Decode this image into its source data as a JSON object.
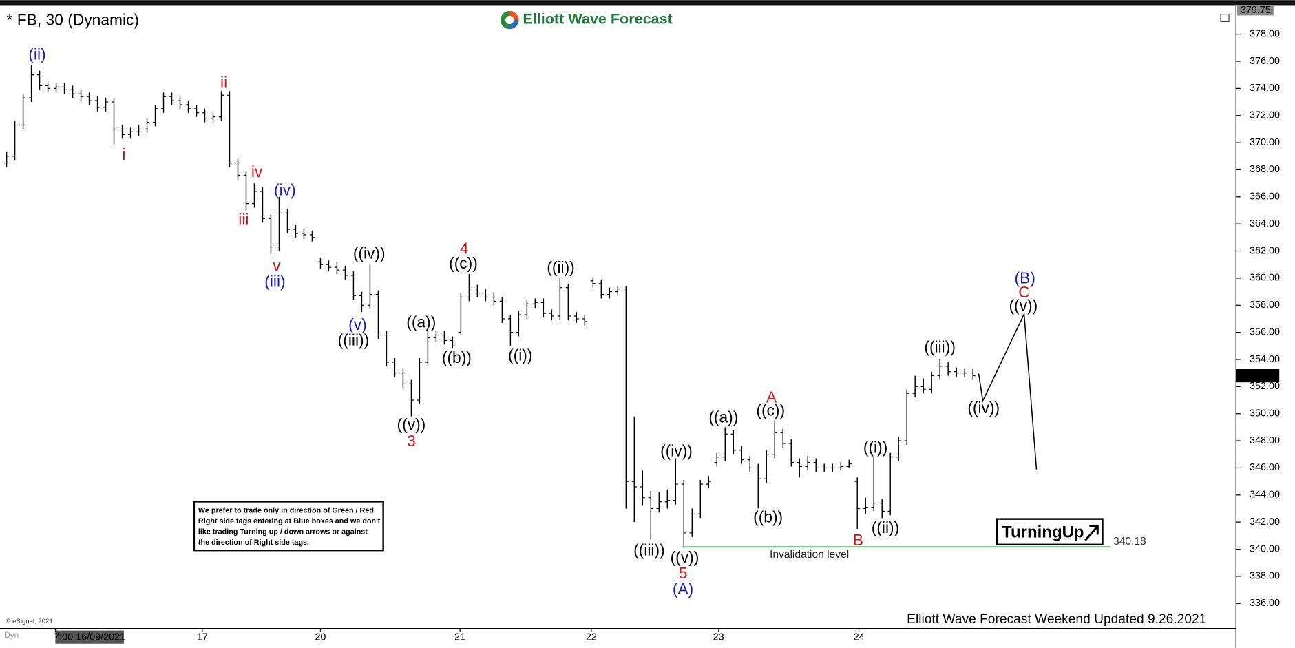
{
  "chart_data": {
    "type": "ohlc",
    "title": "* FB, 30 (Dynamic)",
    "brand": "Elliott Wave Forecast",
    "footer": "Elliott Wave Forecast Weekend Updated 9.26.2021",
    "copyright": "© eSignal, 2021",
    "mode": "Dyn",
    "badge": "TurningUp",
    "note": [
      "We prefer to trade only in direction of Green / Red",
      "Right side tags entering at Blue boxes and we don't",
      "like trading Turning up / down arrows or against",
      "the direction of Right side tags."
    ],
    "color": "#000000",
    "ylim": [
      335.1,
      379.9
    ],
    "yticks": [
      {
        "value": 336,
        "label": "336.00"
      },
      {
        "value": 338,
        "label": "338.00"
      },
      {
        "value": 340,
        "label": "340.00"
      },
      {
        "value": 342,
        "label": "342.00"
      },
      {
        "value": 344,
        "label": "344.00"
      },
      {
        "value": 346,
        "label": "346.00"
      },
      {
        "value": 348,
        "label": "348.00"
      },
      {
        "value": 350,
        "label": "350.00"
      },
      {
        "value": 352,
        "label": "352.00"
      },
      {
        "value": 354,
        "label": "354.00"
      },
      {
        "value": 356,
        "label": "356.00"
      },
      {
        "value": 358,
        "label": "358.00"
      },
      {
        "value": 360,
        "label": "360.00"
      },
      {
        "value": 362,
        "label": "362.00"
      },
      {
        "value": 364,
        "label": "364.00"
      },
      {
        "value": 366,
        "label": "366.00"
      },
      {
        "value": 368,
        "label": "368.00"
      },
      {
        "value": 370,
        "label": "370.00"
      },
      {
        "value": 372,
        "label": "372.00"
      },
      {
        "value": 374,
        "label": "374.00"
      },
      {
        "value": 376,
        "label": "376.00"
      },
      {
        "value": 378,
        "label": "378.00"
      }
    ],
    "xlim": [
      -0.8,
      148.7
    ],
    "xticks": [
      {
        "value": 5.9,
        "label": "7:00 16/09/2021"
      },
      {
        "value": 23.7,
        "label": "17"
      },
      {
        "value": 38.0,
        "label": "20"
      },
      {
        "value": 54.9,
        "label": "21"
      },
      {
        "value": 70.8,
        "label": "22"
      },
      {
        "value": 86.2,
        "label": "23"
      },
      {
        "value": 103.2,
        "label": "24"
      }
    ],
    "high_marker": {
      "value": 379.75,
      "label": "379.75"
    },
    "last_price": {
      "value": 352.8,
      "label": "352.80"
    },
    "invalidation": {
      "value": 340.18,
      "label": "340.18",
      "text": "Invalidation level",
      "color": "#5fd35f"
    },
    "open": [
      368.5,
      369.0,
      371.3,
      373.3,
      375.0,
      374.2,
      374.0,
      374.1,
      373.9,
      373.6,
      373.4,
      373.1,
      372.6,
      373.0,
      371.0,
      370.6,
      370.8,
      371.0,
      371.5,
      372.5,
      373.4,
      373.1,
      372.8,
      372.5,
      372.2,
      371.8,
      371.9,
      373.5,
      368.5,
      367.6,
      365.5,
      366.4,
      364.4,
      362.3,
      364.8,
      363.6,
      363.3,
      363.2,
      361.2,
      361.0,
      360.8,
      360.6,
      360.2,
      358.7,
      358.0,
      358.8,
      355.8,
      353.8,
      353.0,
      352.2,
      351.0,
      353.8,
      355.6,
      355.8,
      355.4,
      356.0,
      358.6,
      359.2,
      358.9,
      358.6,
      358.3,
      357.0,
      356.0,
      357.3,
      358.1,
      358.2,
      357.4,
      357.2,
      359.3,
      357.2,
      357.0,
      359.8,
      359.6,
      358.8,
      359.0,
      359.2,
      345.0,
      344.6,
      343.8,
      343.0,
      343.5,
      343.6,
      344.8,
      341.2,
      342.6,
      344.8,
      346.4,
      346.8,
      348.5,
      347.3,
      346.6,
      346.0,
      345.2,
      347.0,
      348.6,
      347.8,
      346.4,
      346.1,
      346.4,
      346.0,
      346.0,
      346.0,
      346.1,
      345.0,
      343.0,
      343.1,
      343.4,
      342.8,
      346.8,
      348.0,
      351.5,
      352.0,
      351.8,
      352.8,
      353.5,
      353.1,
      353.0,
      353.0
    ],
    "high": [
      369.3,
      371.6,
      373.6,
      375.7,
      375.3,
      374.5,
      374.4,
      374.4,
      374.2,
      373.9,
      373.7,
      373.4,
      373.3,
      373.3,
      371.3,
      371.1,
      371.3,
      371.8,
      372.8,
      373.7,
      373.7,
      373.4,
      373.1,
      372.8,
      372.5,
      372.2,
      373.8,
      373.8,
      368.8,
      367.9,
      367.0,
      366.7,
      364.7,
      366.0,
      365.1,
      363.9,
      363.6,
      363.5,
      361.5,
      361.3,
      361.2,
      360.9,
      360.5,
      359.0,
      361.0,
      359.1,
      356.1,
      354.1,
      353.3,
      352.5,
      354.1,
      356.2,
      356.1,
      356.1,
      355.7,
      358.9,
      360.3,
      359.5,
      359.2,
      358.9,
      358.6,
      357.3,
      357.6,
      358.4,
      358.5,
      358.5,
      357.7,
      360.0,
      359.6,
      357.5,
      357.3,
      360.0,
      359.9,
      359.3,
      359.4,
      359.4,
      349.8,
      345.8,
      344.3,
      344.2,
      344.4,
      346.7,
      345.1,
      343.0,
      345.1,
      345.4,
      347.1,
      349.0,
      348.8,
      347.6,
      346.9,
      346.3,
      347.3,
      349.5,
      348.9,
      348.1,
      346.7,
      346.9,
      346.7,
      346.3,
      346.3,
      346.4,
      346.6,
      345.3,
      343.8,
      346.8,
      343.7,
      347.1,
      348.3,
      351.8,
      352.8,
      352.6,
      353.1,
      354.0,
      353.8,
      353.4,
      353.3,
      353.3
    ],
    "low": [
      368.2,
      368.7,
      371.0,
      373.0,
      373.9,
      373.7,
      373.7,
      373.6,
      373.3,
      373.1,
      372.8,
      372.3,
      372.3,
      369.8,
      370.3,
      370.3,
      370.5,
      370.7,
      371.2,
      372.2,
      372.8,
      372.5,
      372.2,
      371.9,
      371.5,
      371.5,
      371.6,
      368.2,
      367.3,
      365.0,
      365.2,
      364.1,
      361.8,
      362.0,
      363.3,
      363.0,
      362.9,
      362.7,
      360.7,
      360.5,
      360.3,
      359.9,
      358.4,
      357.5,
      357.7,
      355.5,
      353.5,
      352.7,
      351.9,
      349.8,
      350.7,
      353.5,
      355.3,
      355.1,
      354.8,
      355.8,
      358.3,
      358.6,
      358.3,
      358.0,
      356.7,
      355.0,
      355.7,
      357.0,
      357.8,
      357.1,
      356.9,
      356.9,
      356.9,
      356.7,
      356.5,
      359.3,
      358.5,
      358.5,
      358.7,
      343.0,
      342.0,
      343.2,
      340.7,
      342.7,
      343.0,
      343.3,
      340.2,
      340.9,
      342.3,
      344.5,
      346.1,
      346.5,
      347.0,
      346.3,
      345.7,
      343.0,
      344.9,
      346.7,
      347.5,
      346.1,
      345.3,
      345.8,
      345.7,
      345.7,
      345.7,
      345.8,
      346.0,
      341.5,
      342.6,
      342.8,
      342.3,
      342.5,
      346.5,
      347.7,
      351.2,
      351.5,
      351.5,
      352.5,
      352.8,
      352.7,
      352.7,
      352.5
    ],
    "close": [
      369.0,
      371.3,
      373.3,
      375.0,
      374.2,
      374.0,
      374.1,
      373.9,
      373.6,
      373.4,
      373.1,
      372.6,
      373.0,
      371.0,
      370.6,
      370.8,
      371.0,
      371.5,
      372.5,
      373.4,
      373.1,
      372.8,
      372.5,
      372.2,
      371.8,
      371.9,
      373.5,
      368.5,
      367.6,
      365.5,
      366.4,
      364.4,
      362.3,
      364.8,
      363.6,
      363.3,
      363.2,
      363.0,
      361.0,
      360.8,
      360.6,
      360.2,
      358.7,
      358.0,
      358.8,
      355.8,
      353.8,
      353.0,
      352.2,
      351.0,
      353.8,
      355.6,
      355.8,
      355.4,
      355.0,
      358.6,
      359.2,
      358.9,
      358.6,
      358.3,
      357.0,
      356.0,
      357.3,
      358.1,
      358.2,
      357.4,
      357.2,
      359.3,
      357.2,
      357.0,
      356.8,
      359.6,
      358.8,
      359.0,
      359.2,
      345.0,
      344.6,
      343.8,
      343.0,
      343.5,
      343.6,
      344.8,
      341.2,
      342.6,
      344.8,
      345.0,
      346.8,
      348.5,
      347.3,
      346.6,
      346.0,
      345.2,
      347.0,
      348.6,
      347.8,
      346.4,
      346.1,
      346.4,
      346.0,
      346.0,
      346.0,
      346.1,
      346.3,
      343.0,
      343.1,
      343.4,
      342.8,
      346.8,
      348.0,
      351.5,
      352.0,
      351.8,
      352.8,
      353.5,
      353.1,
      353.0,
      353.0,
      352.8
    ],
    "annotations": [
      {
        "text": "(ii)",
        "color": "#1a1ad0"
      },
      {
        "text": "i",
        "color": "#d01414"
      },
      {
        "text": "ii",
        "color": "#d01414"
      },
      {
        "text": "iv",
        "color": "#d01414"
      },
      {
        "text": "iii",
        "color": "#d01414"
      },
      {
        "text": "(iv)",
        "color": "#1a1ad0"
      },
      {
        "text": "v",
        "color": "#d01414"
      },
      {
        "text": "(iii)",
        "color": "#1a1ad0"
      },
      {
        "text": "((iv))",
        "color": "#000000"
      },
      {
        "text": "(v)",
        "color": "#1a1ad0"
      },
      {
        "text": "((iii))",
        "color": "#000000"
      },
      {
        "text": "((a))",
        "color": "#000000"
      },
      {
        "text": "((b))",
        "color": "#000000"
      },
      {
        "text": "((v))",
        "color": "#000000"
      },
      {
        "text": "3",
        "color": "#d01414"
      },
      {
        "text": "4",
        "color": "#d01414"
      },
      {
        "text": "((c))",
        "color": "#000000"
      },
      {
        "text": "((ii))",
        "color": "#000000"
      },
      {
        "text": "((i))",
        "color": "#000000"
      },
      {
        "text": "((iv))",
        "color": "#000000"
      },
      {
        "text": "((iii))",
        "color": "#000000"
      },
      {
        "text": "((v))",
        "color": "#000000"
      },
      {
        "text": "5",
        "color": "#d01414"
      },
      {
        "text": "(A)",
        "color": "#1a1ad0"
      },
      {
        "text": "((a))",
        "color": "#000000"
      },
      {
        "text": "A",
        "color": "#d01414"
      },
      {
        "text": "((c))",
        "color": "#000000"
      },
      {
        "text": "((b))",
        "color": "#000000"
      },
      {
        "text": "B",
        "color": "#d01414"
      },
      {
        "text": "((i))",
        "color": "#000000"
      },
      {
        "text": "((ii))",
        "color": "#000000"
      },
      {
        "text": "((iii))",
        "color": "#000000"
      },
      {
        "text": "((iv))",
        "color": "#000000"
      },
      {
        "text": "(B)",
        "color": "#1a1ad0"
      },
      {
        "text": "C",
        "color": "#d01414"
      },
      {
        "text": "((v))",
        "color": "#000000"
      }
    ]
  }
}
